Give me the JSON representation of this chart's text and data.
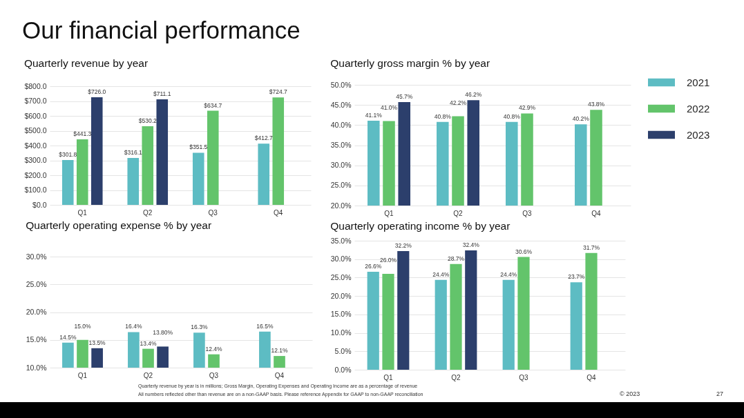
{
  "chart_data": [
    {
      "type": "other",
      "title": "Our financial performance"
    },
    {
      "type": "bar",
      "title": "Quarterly revenue by year",
      "categories": [
        "Q1",
        "Q2",
        "Q3",
        "Q4"
      ],
      "series": [
        {
          "color": "#5dbcc3",
          "values": [
            301.8,
            316.1,
            351.5,
            412.7
          ],
          "value_labels": [
            "$301.8",
            "$316.1",
            "$351.5",
            "$412.7"
          ]
        },
        {
          "color": "#63c46b",
          "values": [
            441.3,
            530.2,
            634.7,
            724.7
          ],
          "value_labels": [
            "$441.3",
            "$530.2",
            "$634.7",
            "$724.7"
          ]
        },
        {
          "color": "#2c3f6c",
          "values": [
            726.0,
            711.1,
            null,
            null
          ],
          "value_labels": [
            "$726.0",
            "$711.1",
            null,
            null
          ]
        }
      ],
      "ylim": [
        0,
        800
      ],
      "yticks": [
        {
          "value": 0,
          "label": "$0.0"
        },
        {
          "value": 100,
          "label": "$100.0"
        },
        {
          "value": 200,
          "label": "$200.0"
        },
        {
          "value": 300,
          "label": "$300.0"
        },
        {
          "value": 400,
          "label": "$400.0"
        },
        {
          "value": 500,
          "label": "$500.0"
        },
        {
          "value": 600,
          "label": "$600.0"
        },
        {
          "value": 700,
          "label": "$700.0"
        },
        {
          "value": 800,
          "label": "$800.0"
        }
      ],
      "grid": "y"
    },
    {
      "type": "bar",
      "title": "Quarterly gross margin % by year",
      "categories": [
        "Q1",
        "Q2",
        "Q3",
        "Q4"
      ],
      "series": [
        {
          "name": "2021",
          "color": "#5dbcc3",
          "values": [
            41.1,
            40.8,
            40.8,
            40.2
          ],
          "value_labels": [
            "41.1%",
            "40.8%",
            "40.8%",
            "40.2%"
          ]
        },
        {
          "name": "2022",
          "color": "#63c46b",
          "values": [
            41.0,
            42.2,
            42.9,
            43.8
          ],
          "value_labels": [
            "41.0%",
            "42.2%",
            "42.9%",
            "43.8%"
          ]
        },
        {
          "name": "2023",
          "color": "#2c3f6c",
          "values": [
            45.7,
            46.2,
            null,
            null
          ],
          "value_labels": [
            "45.7%",
            "46.2%",
            null,
            null
          ]
        }
      ],
      "ylim": [
        20,
        50
      ],
      "yticks": [
        {
          "value": 20,
          "label": "20.0%"
        },
        {
          "value": 25,
          "label": "25.0%"
        },
        {
          "value": 30,
          "label": "30.0%"
        },
        {
          "value": 35,
          "label": "35.0%"
        },
        {
          "value": 40,
          "label": "40.0%"
        },
        {
          "value": 45,
          "label": "45.0%"
        },
        {
          "value": 50,
          "label": "50.0%"
        }
      ],
      "grid": "y",
      "legend": "right"
    },
    {
      "type": "bar",
      "title": "Quarterly operating expense % by year",
      "categories": [
        "Q1",
        "Q2",
        "Q3",
        "Q4"
      ],
      "series": [
        {
          "color": "#5dbcc3",
          "values": [
            14.5,
            16.4,
            16.3,
            16.5
          ],
          "value_labels": [
            "14.5%",
            "16.4%",
            "16.3%",
            "16.5%"
          ]
        },
        {
          "color": "#63c46b",
          "values": [
            15.0,
            13.4,
            12.4,
            12.1
          ],
          "value_labels": [
            "15.0%",
            "13.4%",
            "12.4%",
            "12.1%"
          ]
        },
        {
          "color": "#2c3f6c",
          "values": [
            13.5,
            13.8,
            null,
            null
          ],
          "value_labels": [
            "13.5%",
            "13.80%",
            null,
            null
          ]
        }
      ],
      "ylim": [
        10,
        30
      ],
      "yticks": [
        {
          "value": 10,
          "label": "10.0%"
        },
        {
          "value": 15,
          "label": "15.0%"
        },
        {
          "value": 20,
          "label": "20.0%"
        },
        {
          "value": 25,
          "label": "25.0%"
        },
        {
          "value": 30,
          "label": "30.0%"
        }
      ],
      "grid": "y"
    },
    {
      "type": "bar",
      "title": "Quarterly operating income % by year",
      "categories": [
        "Q1",
        "Q2",
        "Q3",
        "Q4"
      ],
      "series": [
        {
          "color": "#5dbcc3",
          "values": [
            26.6,
            24.4,
            24.4,
            23.7
          ],
          "value_labels": [
            "26.6%",
            "24.4%",
            "24.4%",
            "23.7%"
          ]
        },
        {
          "color": "#63c46b",
          "values": [
            26.0,
            28.7,
            30.6,
            31.7
          ],
          "value_labels": [
            "26.0%",
            "28.7%",
            "30.6%",
            "31.7%"
          ]
        },
        {
          "color": "#2c3f6c",
          "values": [
            32.2,
            32.4,
            null,
            null
          ],
          "value_labels": [
            "32.2%",
            "32.4%",
            null,
            null
          ]
        }
      ],
      "ylim": [
        0,
        35
      ],
      "yticks": [
        {
          "value": 0,
          "label": "0.0%"
        },
        {
          "value": 5,
          "label": "5.0%"
        },
        {
          "value": 10,
          "label": "10.0%"
        },
        {
          "value": 15,
          "label": "15.0%"
        },
        {
          "value": 20,
          "label": "20.0%"
        },
        {
          "value": 25,
          "label": "25.0%"
        },
        {
          "value": 30,
          "label": "30.0%"
        },
        {
          "value": 35,
          "label": "35.0%"
        }
      ],
      "grid": "y"
    },
    {
      "type": "other",
      "annotations": [
        "Quarterly revenue by year is in millions; Gross Margin, Operating Expenses and Operating Income are as a percentage of revenue",
        "All numbers reflected other than revenue are on a non-GAAP basis. Please reference Appendix for GAAP to non-GAAP reconciliation",
        "© 2023",
        "27"
      ]
    }
  ]
}
